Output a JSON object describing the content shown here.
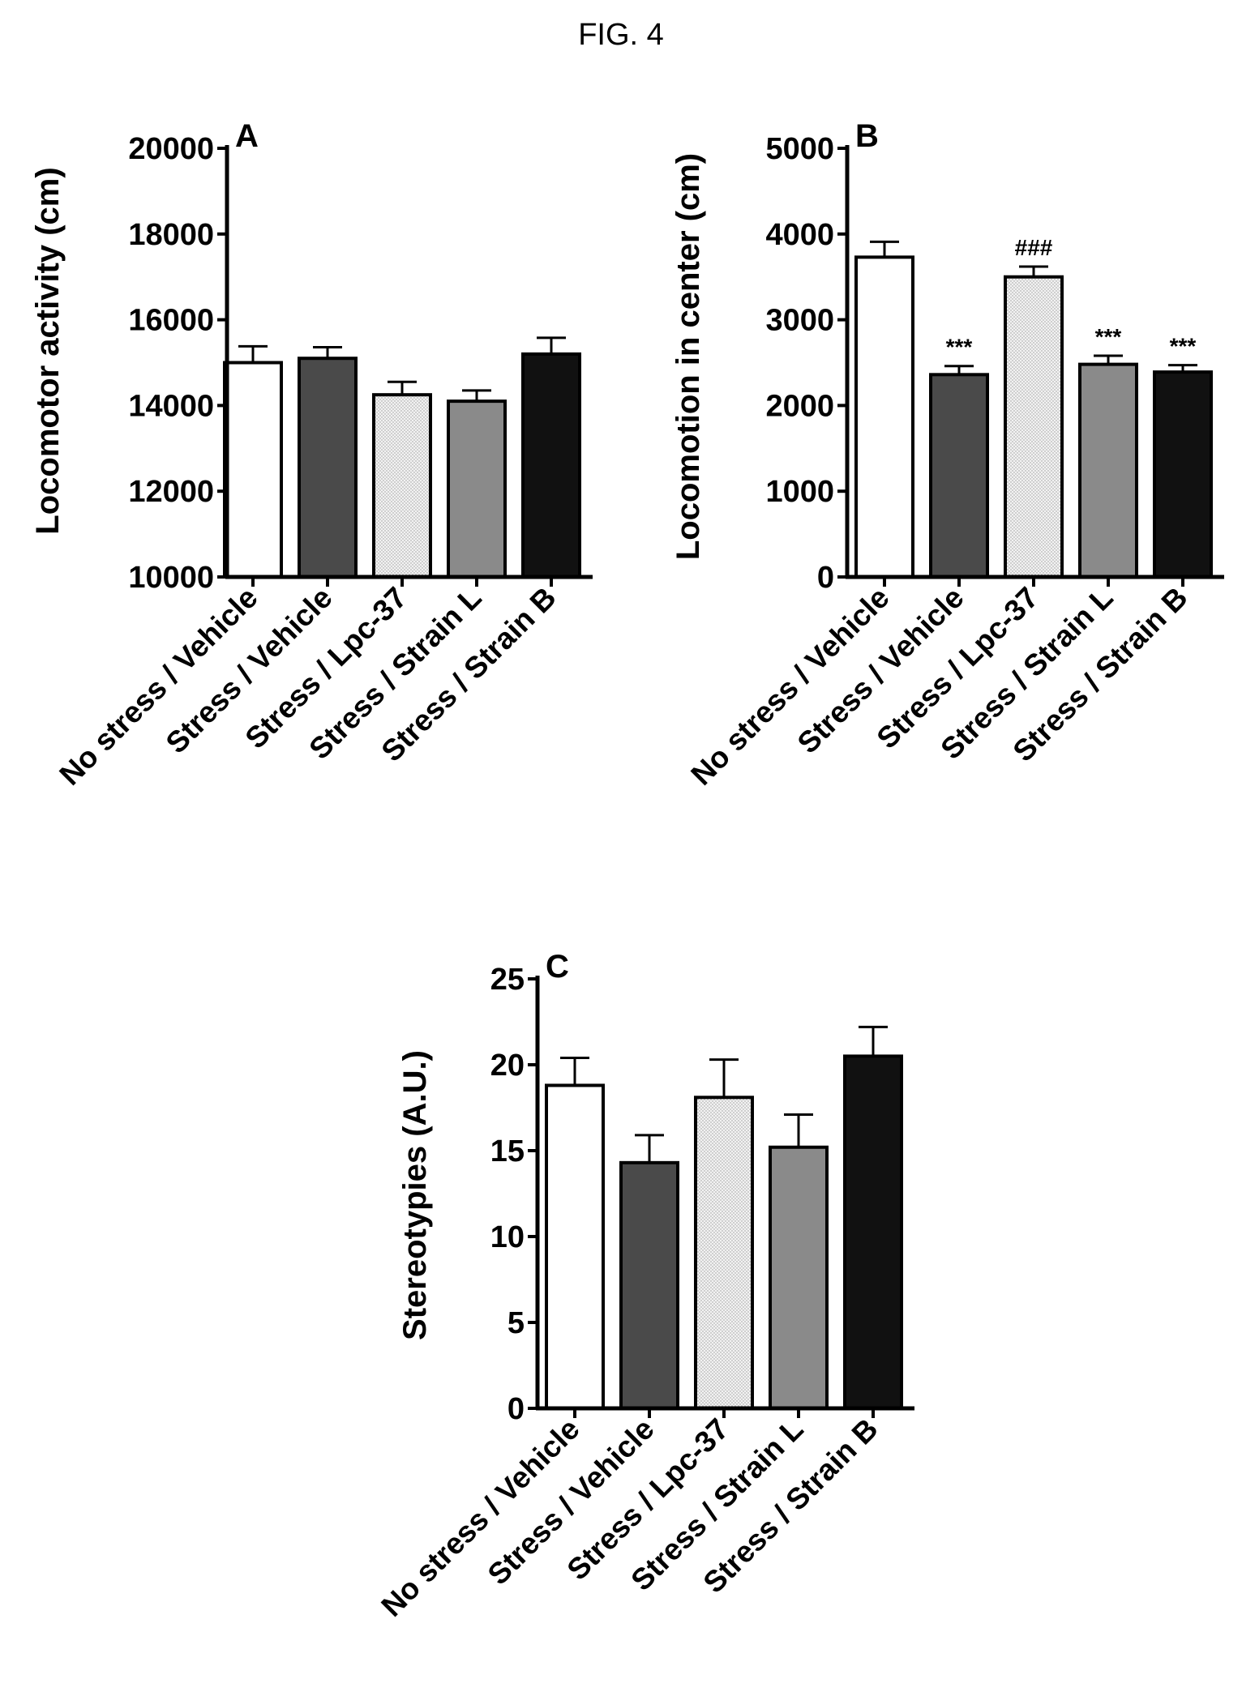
{
  "figure": {
    "title": "FIG. 4"
  },
  "chart_data": [
    {
      "type": "bar",
      "panel": "A",
      "title": "",
      "xlabel": "",
      "ylabel": "Locomotor activity (cm)",
      "ylim": [
        10000,
        20000
      ],
      "yticks": [
        10000,
        12000,
        14000,
        16000,
        18000,
        20000
      ],
      "categories": [
        "No stress / Vehicle",
        "Stress / Vehicle",
        "Stress / Lpc-37",
        "Stress / Strain L",
        "Stress / Strain B"
      ],
      "values": [
        15000,
        15100,
        14250,
        14100,
        15200
      ],
      "errors": [
        380,
        260,
        300,
        250,
        380
      ],
      "annotations": [
        "",
        "",
        "",
        "",
        ""
      ],
      "bar_colors": [
        "#ffffff",
        "#4a4a4a",
        "#eeeeee",
        "#8a8a8a",
        "#111111"
      ],
      "grid": false,
      "legend": "none"
    },
    {
      "type": "bar",
      "panel": "B",
      "title": "",
      "xlabel": "",
      "ylabel": "Locomotion in center (cm)",
      "ylim": [
        0,
        5000
      ],
      "yticks": [
        0,
        1000,
        2000,
        3000,
        4000,
        5000
      ],
      "categories": [
        "No stress / Vehicle",
        "Stress / Vehicle",
        "Stress / Lpc-37",
        "Stress / Strain L",
        "Stress / Strain B"
      ],
      "values": [
        3730,
        2360,
        3500,
        2480,
        2390
      ],
      "errors": [
        180,
        100,
        120,
        100,
        80
      ],
      "annotations": [
        "",
        "***",
        "###",
        "***",
        "***"
      ],
      "bar_colors": [
        "#ffffff",
        "#4a4a4a",
        "#eeeeee",
        "#8a8a8a",
        "#111111"
      ],
      "grid": false,
      "legend": "none"
    },
    {
      "type": "bar",
      "panel": "C",
      "title": "",
      "xlabel": "",
      "ylabel": "Stereotypies (A.U.)",
      "ylim": [
        0,
        25
      ],
      "yticks": [
        0,
        5,
        10,
        15,
        20,
        25
      ],
      "categories": [
        "No stress / Vehicle",
        "Stress / Vehicle",
        "Stress / Lpc-37",
        "Stress / Strain L",
        "Stress / Strain B"
      ],
      "values": [
        18.8,
        14.3,
        18.1,
        15.2,
        20.5
      ],
      "errors": [
        1.6,
        1.6,
        2.2,
        1.9,
        1.7
      ],
      "annotations": [
        "",
        "",
        "",
        "",
        ""
      ],
      "bar_colors": [
        "#ffffff",
        "#4a4a4a",
        "#eeeeee",
        "#8a8a8a",
        "#111111"
      ],
      "grid": false,
      "legend": "none"
    }
  ]
}
